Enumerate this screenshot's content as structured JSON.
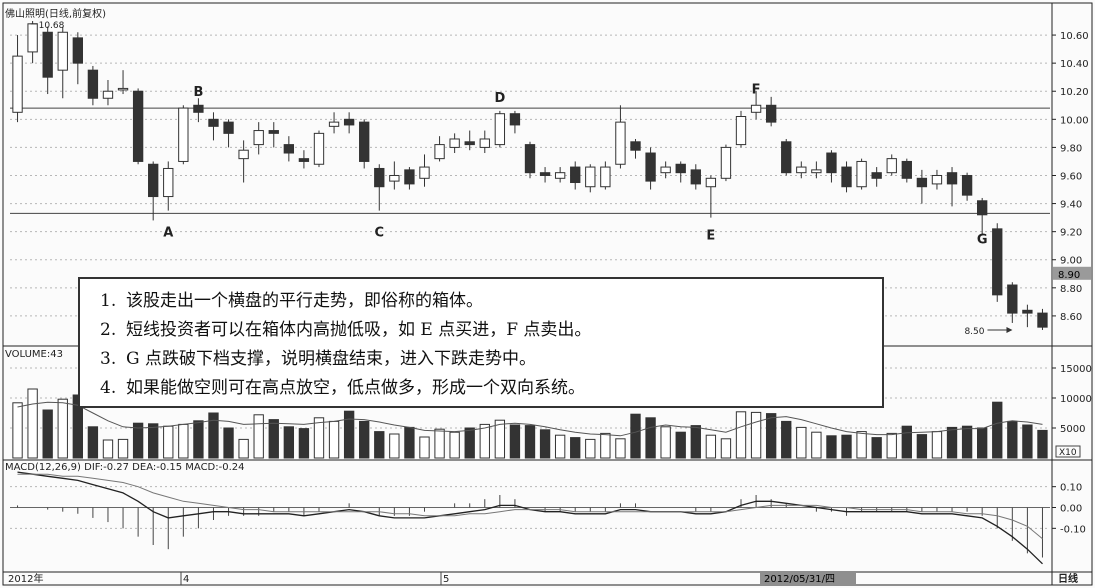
{
  "stock_title": "佛山照明(日线,前复权)",
  "volume_label": "VOLUME:43",
  "macd_label": "MACD(12,26,9) DIF:-0.27 DEA:-0.15 MACD:-0.24",
  "volume_scale_label": "X10",
  "period_label": "日线",
  "time_labels": [
    "2012年",
    "4",
    "5",
    "2012/05/31/四"
  ],
  "price_tag": "8.90",
  "colors": {
    "up": "#ffffff",
    "down": "#333333",
    "grid": "#b7b7b7",
    "outline": "#222222",
    "tag_bg": "#9a9a9a"
  },
  "chart_data": [
    {
      "type": "candlestick",
      "title": "佛山照明(日线,前复权)",
      "y_ticks": [
        "10.60",
        "10.40",
        "10.20",
        "10.00",
        "9.80",
        "9.60",
        "9.40",
        "9.20",
        "9.00",
        "8.80",
        "8.60"
      ],
      "ylim": [
        8.4,
        10.75
      ],
      "resistance": 10.08,
      "support": 9.33,
      "max_label": "10.68",
      "min_label": "8.50",
      "candles": [
        [
          10.05,
          10.45,
          10.6,
          9.98
        ],
        [
          10.48,
          10.68,
          10.7,
          10.4
        ],
        [
          10.62,
          10.3,
          10.66,
          10.18
        ],
        [
          10.35,
          10.62,
          10.66,
          10.15
        ],
        [
          10.58,
          10.4,
          10.62,
          10.25
        ],
        [
          10.35,
          10.15,
          10.38,
          10.1
        ],
        [
          10.15,
          10.2,
          10.28,
          10.1
        ],
        [
          10.22,
          10.22,
          10.35,
          10.18
        ],
        [
          10.2,
          9.7,
          10.22,
          9.68
        ],
        [
          9.68,
          9.45,
          9.7,
          9.28
        ],
        [
          9.45,
          9.65,
          9.7,
          9.35
        ],
        [
          9.7,
          10.08,
          10.1,
          9.68
        ],
        [
          10.1,
          10.05,
          10.15,
          9.98
        ],
        [
          10.0,
          9.95,
          10.05,
          9.85
        ],
        [
          9.98,
          9.9,
          10.0,
          9.8
        ],
        [
          9.72,
          9.78,
          9.85,
          9.55
        ],
        [
          9.82,
          9.92,
          9.98,
          9.75
        ],
        [
          9.92,
          9.9,
          9.98,
          9.8
        ],
        [
          9.82,
          9.76,
          9.88,
          9.7
        ],
        [
          9.72,
          9.7,
          9.78,
          9.65
        ],
        [
          9.68,
          9.9,
          9.92,
          9.66
        ],
        [
          9.95,
          9.98,
          10.05,
          9.9
        ],
        [
          10.0,
          9.96,
          10.05,
          9.9
        ],
        [
          9.98,
          9.7,
          10.0,
          9.65
        ],
        [
          9.65,
          9.52,
          9.68,
          9.35
        ],
        [
          9.56,
          9.6,
          9.7,
          9.5
        ],
        [
          9.64,
          9.54,
          9.66,
          9.5
        ],
        [
          9.58,
          9.66,
          9.75,
          9.52
        ],
        [
          9.72,
          9.82,
          9.88,
          9.7
        ],
        [
          9.8,
          9.86,
          9.9,
          9.76
        ],
        [
          9.84,
          9.82,
          9.92,
          9.78
        ],
        [
          9.8,
          9.86,
          9.92,
          9.76
        ],
        [
          9.82,
          10.04,
          10.06,
          9.8
        ],
        [
          10.04,
          9.96,
          10.06,
          9.9
        ],
        [
          9.82,
          9.62,
          9.84,
          9.58
        ],
        [
          9.62,
          9.6,
          9.66,
          9.55
        ],
        [
          9.58,
          9.62,
          9.66,
          9.55
        ],
        [
          9.66,
          9.55,
          9.7,
          9.5
        ],
        [
          9.52,
          9.66,
          9.68,
          9.48
        ],
        [
          9.52,
          9.66,
          9.7,
          9.5
        ],
        [
          9.68,
          9.98,
          10.1,
          9.65
        ],
        [
          9.84,
          9.78,
          9.86,
          9.72
        ],
        [
          9.76,
          9.56,
          9.8,
          9.5
        ],
        [
          9.62,
          9.66,
          9.7,
          9.58
        ],
        [
          9.68,
          9.62,
          9.7,
          9.55
        ],
        [
          9.64,
          9.54,
          9.68,
          9.5
        ],
        [
          9.52,
          9.58,
          9.6,
          9.3
        ],
        [
          9.58,
          9.8,
          9.82,
          9.56
        ],
        [
          9.82,
          10.02,
          10.06,
          9.8
        ],
        [
          10.05,
          10.1,
          10.2,
          10.0
        ],
        [
          10.1,
          9.98,
          10.16,
          9.95
        ],
        [
          9.84,
          9.62,
          9.86,
          9.6
        ],
        [
          9.62,
          9.66,
          9.7,
          9.58
        ],
        [
          9.62,
          9.64,
          9.7,
          9.58
        ],
        [
          9.76,
          9.62,
          9.78,
          9.55
        ],
        [
          9.66,
          9.52,
          9.7,
          9.48
        ],
        [
          9.52,
          9.7,
          9.72,
          9.5
        ],
        [
          9.62,
          9.58,
          9.66,
          9.52
        ],
        [
          9.62,
          9.72,
          9.75,
          9.6
        ],
        [
          9.7,
          9.58,
          9.72,
          9.55
        ],
        [
          9.58,
          9.52,
          9.64,
          9.4
        ],
        [
          9.54,
          9.6,
          9.64,
          9.5
        ],
        [
          9.62,
          9.54,
          9.66,
          9.38
        ],
        [
          9.6,
          9.46,
          9.62,
          9.42
        ],
        [
          9.42,
          9.32,
          9.44,
          9.18
        ],
        [
          9.22,
          8.75,
          9.26,
          8.7
        ],
        [
          8.82,
          8.62,
          8.84,
          8.55
        ],
        [
          8.64,
          8.62,
          8.68,
          8.52
        ],
        [
          8.62,
          8.52,
          8.65,
          8.5
        ]
      ],
      "annotations": [
        {
          "text": "A",
          "index": 10,
          "price": 9.2
        },
        {
          "text": "B",
          "index": 12,
          "price": 10.2
        },
        {
          "text": "C",
          "index": 24,
          "price": 9.2
        },
        {
          "text": "D",
          "index": 32,
          "price": 10.16
        },
        {
          "text": "E",
          "index": 46,
          "price": 9.18
        },
        {
          "text": "F",
          "index": 49,
          "price": 10.22
        },
        {
          "text": "G",
          "index": 64,
          "price": 9.15
        }
      ]
    },
    {
      "type": "bar",
      "title": "VOLUME:43",
      "y_ticks": [
        "15000",
        "10000",
        "5000"
      ],
      "ylim": [
        0,
        17000
      ],
      "values": [
        9200,
        11500,
        8000,
        9800,
        10500,
        5200,
        3000,
        3100,
        5800,
        5700,
        5300,
        5600,
        6200,
        7500,
        5000,
        3100,
        7200,
        6400,
        5200,
        4900,
        6700,
        6100,
        7800,
        6100,
        4400,
        4000,
        5100,
        3500,
        4800,
        4300,
        5000,
        5600,
        6300,
        5500,
        5400,
        4700,
        3800,
        3400,
        3100,
        4100,
        3200,
        7300,
        6700,
        5200,
        4300,
        5400,
        3800,
        3200,
        7700,
        7600,
        7400,
        6100,
        5100,
        4300,
        3700,
        3800,
        4400,
        3400,
        4100,
        5300,
        3900,
        4400,
        5100,
        5300,
        5000,
        9300,
        6100,
        5500,
        4600
      ],
      "moving_average": [
        8500,
        9000,
        9300,
        9200,
        8800,
        7500,
        6200,
        5200,
        5000,
        5100,
        5300,
        5600,
        5900,
        6300,
        6100,
        5600,
        5700,
        5800,
        5700,
        5600,
        5900,
        6100,
        6500,
        6400,
        6000,
        5500,
        5100,
        4600,
        4500,
        4400,
        4600,
        5000,
        5600,
        5800,
        5600,
        5200,
        4700,
        4300,
        4000,
        3900,
        3700,
        4300,
        5100,
        5500,
        5200,
        5100,
        4700,
        4300,
        5200,
        6000,
        6700,
        6900,
        6400,
        5700,
        5000,
        4400,
        4100,
        3900,
        3900,
        4200,
        4300,
        4400,
        4700,
        4900,
        4900,
        5800,
        6200,
        6000,
        5600
      ]
    },
    {
      "type": "line",
      "title": "MACD(12,26,9) DIF:-0.27 DEA:-0.15 MACD:-0.24",
      "y_ticks": [
        "0.10",
        "0.00",
        "-0.10"
      ],
      "ylim": [
        -0.3,
        0.18
      ],
      "series": [
        {
          "name": "DIF",
          "values": [
            0.17,
            0.16,
            0.15,
            0.14,
            0.13,
            0.11,
            0.09,
            0.07,
            0.03,
            -0.02,
            -0.05,
            -0.04,
            -0.03,
            -0.02,
            -0.02,
            -0.03,
            -0.03,
            -0.03,
            -0.03,
            -0.04,
            -0.03,
            -0.02,
            -0.01,
            -0.02,
            -0.04,
            -0.05,
            -0.05,
            -0.05,
            -0.04,
            -0.03,
            -0.02,
            -0.01,
            0.01,
            0.01,
            -0.01,
            -0.02,
            -0.02,
            -0.03,
            -0.03,
            -0.03,
            -0.01,
            -0.01,
            -0.02,
            -0.02,
            -0.02,
            -0.03,
            -0.03,
            -0.02,
            0.01,
            0.03,
            0.03,
            0.02,
            0.01,
            0.0,
            -0.01,
            -0.02,
            -0.02,
            -0.02,
            -0.02,
            -0.02,
            -0.03,
            -0.03,
            -0.03,
            -0.04,
            -0.05,
            -0.09,
            -0.14,
            -0.2,
            -0.27
          ]
        },
        {
          "name": "DEA",
          "values": [
            0.16,
            0.16,
            0.16,
            0.15,
            0.15,
            0.14,
            0.13,
            0.12,
            0.1,
            0.07,
            0.05,
            0.03,
            0.02,
            0.01,
            0.0,
            -0.01,
            -0.01,
            -0.02,
            -0.02,
            -0.02,
            -0.02,
            -0.02,
            -0.02,
            -0.02,
            -0.02,
            -0.03,
            -0.03,
            -0.04,
            -0.04,
            -0.04,
            -0.03,
            -0.03,
            -0.02,
            -0.01,
            -0.01,
            -0.01,
            -0.01,
            -0.02,
            -0.02,
            -0.02,
            -0.02,
            -0.02,
            -0.02,
            -0.02,
            -0.02,
            -0.02,
            -0.02,
            -0.02,
            -0.01,
            0.0,
            0.01,
            0.01,
            0.01,
            0.01,
            0.0,
            0.0,
            -0.01,
            -0.01,
            -0.01,
            -0.01,
            -0.02,
            -0.02,
            -0.02,
            -0.03,
            -0.03,
            -0.04,
            -0.06,
            -0.09,
            -0.15
          ]
        },
        {
          "name": "MACD",
          "values": [
            0.01,
            0.0,
            -0.01,
            -0.02,
            -0.03,
            -0.05,
            -0.07,
            -0.1,
            -0.14,
            -0.18,
            -0.2,
            -0.14,
            -0.1,
            -0.06,
            -0.04,
            -0.04,
            -0.04,
            -0.02,
            -0.02,
            -0.04,
            -0.02,
            0.0,
            0.02,
            0.0,
            -0.04,
            -0.04,
            -0.04,
            -0.02,
            0.0,
            0.02,
            0.02,
            0.04,
            0.06,
            0.04,
            0.0,
            -0.02,
            -0.02,
            -0.02,
            -0.02,
            -0.02,
            0.02,
            0.02,
            0.0,
            0.0,
            0.0,
            -0.02,
            -0.02,
            0.0,
            0.04,
            0.06,
            0.04,
            0.02,
            0.0,
            -0.02,
            -0.02,
            -0.04,
            -0.02,
            -0.02,
            -0.02,
            -0.02,
            -0.02,
            -0.02,
            -0.02,
            -0.02,
            -0.04,
            -0.1,
            -0.16,
            -0.22,
            -0.24
          ]
        }
      ]
    }
  ],
  "notes": [
    {
      "num": "1.",
      "text": "该股走出一个横盘的平行走势，即俗称的箱体。"
    },
    {
      "num": "2.",
      "text": "短线投资者可以在箱体内高抛低吸，如 E 点买进，F 点卖出。"
    },
    {
      "num": "3.",
      "text": "G 点跌破下档支撑，说明横盘结束，进入下跌走势中。"
    },
    {
      "num": "4.",
      "text": "如果能做空则可在高点放空，低点做多，形成一个双向系统。"
    }
  ]
}
